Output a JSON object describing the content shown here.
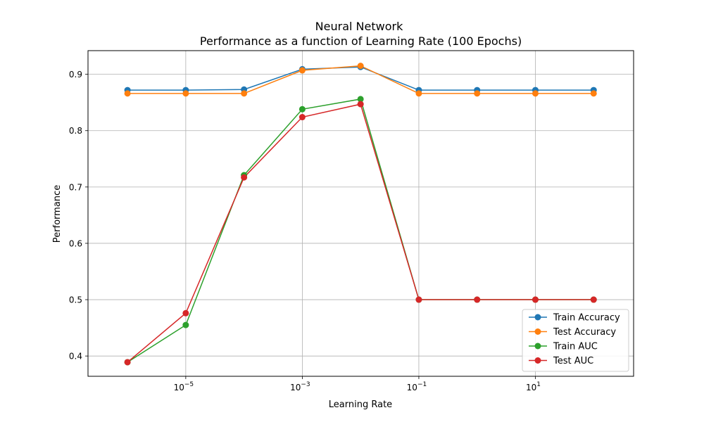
{
  "chart_data": {
    "type": "line",
    "title_line1": "Neural Network",
    "title_line2": " Performance as a function of Learning Rate (100 Epochs)",
    "xlabel": "Learning Rate",
    "ylabel": "Performance",
    "xscale": "log",
    "x": [
      1e-06,
      1e-05,
      0.0001,
      0.001,
      0.01,
      0.1,
      1,
      10,
      100
    ],
    "xlim": [
      2.1e-07,
      485
    ],
    "ylim": [
      0.364,
      0.942
    ],
    "xticks": [
      1e-05,
      0.001,
      0.1,
      10
    ],
    "xtick_labels": [
      {
        "base": "10",
        "exp": "−5"
      },
      {
        "base": "10",
        "exp": "−3"
      },
      {
        "base": "10",
        "exp": "−1"
      },
      {
        "base": "10",
        "exp": "1"
      }
    ],
    "yticks": [
      0.4,
      0.5,
      0.6,
      0.7,
      0.8,
      0.9
    ],
    "ytick_labels": [
      "0.4",
      "0.5",
      "0.6",
      "0.7",
      "0.8",
      "0.9"
    ],
    "grid": true,
    "legend_position": "bottom-right",
    "series": [
      {
        "name": "Train Accuracy",
        "color": "#1f77b4",
        "values": [
          0.872,
          0.872,
          0.873,
          0.909,
          0.913,
          0.872,
          0.872,
          0.872,
          0.872
        ]
      },
      {
        "name": "Test Accuracy",
        "color": "#ff7f0e",
        "values": [
          0.866,
          0.866,
          0.866,
          0.907,
          0.915,
          0.866,
          0.866,
          0.866,
          0.866
        ]
      },
      {
        "name": "Train AUC",
        "color": "#2ca02c",
        "values": [
          0.389,
          0.455,
          0.721,
          0.838,
          0.856,
          0.5,
          0.5,
          0.5,
          0.5
        ]
      },
      {
        "name": "Test AUC",
        "color": "#d62728",
        "values": [
          0.389,
          0.476,
          0.717,
          0.824,
          0.847,
          0.5,
          0.5,
          0.5,
          0.5
        ]
      }
    ]
  }
}
